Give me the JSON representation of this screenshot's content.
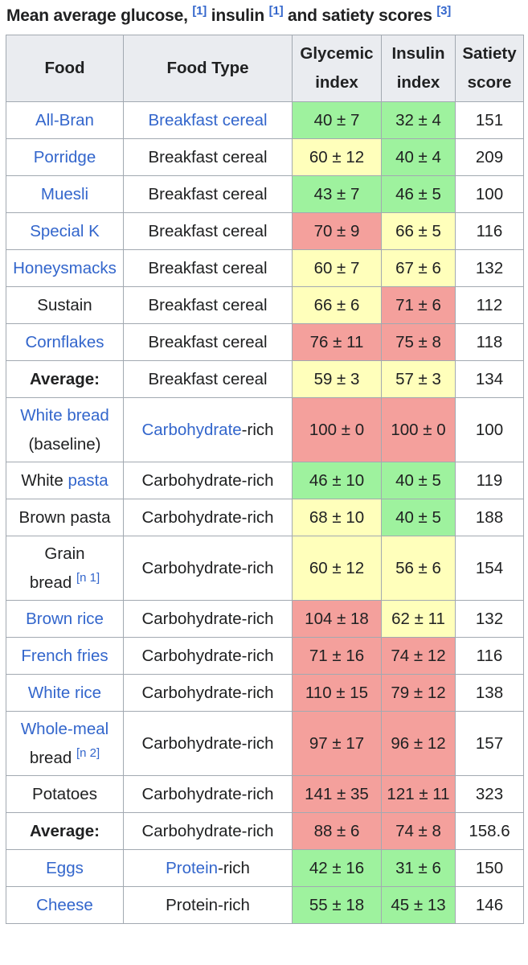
{
  "caption": {
    "text1": "Mean average glucose,",
    "ref1": "[1]",
    "text2": "insulin",
    "ref2": "[1]",
    "text3": "and satiety scores",
    "ref3": "[3]"
  },
  "headers": {
    "food": "Food",
    "food_type": "Food Type",
    "glycemic_1": "Glycemic",
    "glycemic_2": "index",
    "insulin_1": "Insulin",
    "insulin_2": "index",
    "satiety_1": "Satiety",
    "satiety_2": "score"
  },
  "colors": {
    "low": "#9ef29e",
    "medium": "#ffffbb",
    "high": "#f4a09c",
    "link": "#3366cc",
    "header_bg": "#eaecf0"
  },
  "rows": [
    {
      "food": "All-Bran",
      "food_link": true,
      "type": "Breakfast cereal",
      "type_link": true,
      "gi": "40 ± 7",
      "gi_level": "low",
      "ii": "32 ± 4",
      "ii_level": "low",
      "satiety": "151"
    },
    {
      "food": "Porridge",
      "food_link": true,
      "type": "Breakfast cereal",
      "gi": "60 ± 12",
      "gi_level": "medium",
      "ii": "40 ± 4",
      "ii_level": "low",
      "satiety": "209"
    },
    {
      "food": "Muesli",
      "food_link": true,
      "type": "Breakfast cereal",
      "gi": "43 ± 7",
      "gi_level": "low",
      "ii": "46 ± 5",
      "ii_level": "low",
      "satiety": "100"
    },
    {
      "food": "Special K",
      "food_link": true,
      "type": "Breakfast cereal",
      "gi": "70 ± 9",
      "gi_level": "high",
      "ii": "66 ± 5",
      "ii_level": "medium",
      "satiety": "116"
    },
    {
      "food": "Honeysmacks",
      "food_link": true,
      "type": "Breakfast cereal",
      "gi": "60 ± 7",
      "gi_level": "medium",
      "ii": "67 ± 6",
      "ii_level": "medium",
      "satiety": "132"
    },
    {
      "food": "Sustain",
      "type": "Breakfast cereal",
      "gi": "66 ± 6",
      "gi_level": "medium",
      "ii": "71 ± 6",
      "ii_level": "high",
      "satiety": "112"
    },
    {
      "food": "Cornflakes",
      "food_link": true,
      "type": "Breakfast cereal",
      "gi": "76 ± 11",
      "gi_level": "high",
      "ii": "75 ± 8",
      "ii_level": "high",
      "satiety": "118"
    },
    {
      "food": "Average:",
      "food_bold": true,
      "type": "Breakfast cereal",
      "gi": "59 ± 3",
      "gi_level": "medium",
      "ii": "57 ± 3",
      "ii_level": "medium",
      "satiety": "134"
    },
    {
      "food": "White bread",
      "food_link": true,
      "food_line2": "(baseline)",
      "type_link_part": "Carbohydrate",
      "type_rest": "-rich",
      "gi": "100 ± 0",
      "gi_level": "high",
      "ii": "100 ± 0",
      "ii_level": "high",
      "satiety": "100"
    },
    {
      "food_plain_part": "White ",
      "food_link_part": "pasta",
      "type": "Carbohydrate-rich",
      "gi": "46 ± 10",
      "gi_level": "low",
      "ii": "40 ± 5",
      "ii_level": "low",
      "satiety": "119"
    },
    {
      "food": "Brown pasta",
      "type": "Carbohydrate-rich",
      "gi": "68 ± 10",
      "gi_level": "medium",
      "ii": "40 ± 5",
      "ii_level": "low",
      "satiety": "188"
    },
    {
      "food": "Grain",
      "food_line2": "bread",
      "food_note": "[n 1]",
      "type": "Carbohydrate-rich",
      "gi": "60 ± 12",
      "gi_level": "medium",
      "ii": "56 ± 6",
      "ii_level": "medium",
      "satiety": "154"
    },
    {
      "food": "Brown rice",
      "food_link": true,
      "type": "Carbohydrate-rich",
      "gi": "104 ± 18",
      "gi_level": "high",
      "ii": "62 ± 11",
      "ii_level": "medium",
      "satiety": "132"
    },
    {
      "food": "French fries",
      "food_link": true,
      "type": "Carbohydrate-rich",
      "gi": "71 ± 16",
      "gi_level": "high",
      "ii": "74 ± 12",
      "ii_level": "high",
      "satiety": "116"
    },
    {
      "food": "White rice",
      "food_link": true,
      "type": "Carbohydrate-rich",
      "gi": "110 ± 15",
      "gi_level": "high",
      "ii": "79 ± 12",
      "ii_level": "high",
      "satiety": "138"
    },
    {
      "food": "Whole-meal",
      "food_link": true,
      "food_line2": "bread",
      "food_note": "[n 2]",
      "type": "Carbohydrate-rich",
      "gi": "97 ± 17",
      "gi_level": "high",
      "ii": "96 ± 12",
      "ii_level": "high",
      "satiety": "157"
    },
    {
      "food": "Potatoes",
      "type": "Carbohydrate-rich",
      "gi": "141 ± 35",
      "gi_level": "high",
      "ii": "121 ± 11",
      "ii_level": "high",
      "satiety": "323"
    },
    {
      "food": "Average:",
      "food_bold": true,
      "type": "Carbohydrate-rich",
      "gi": "88 ± 6",
      "gi_level": "high",
      "ii": "74 ± 8",
      "ii_level": "high",
      "satiety": "158.6"
    },
    {
      "food": "Eggs",
      "food_link": true,
      "type_link_part": "Protein",
      "type_rest": "-rich",
      "gi": "42 ± 16",
      "gi_level": "low",
      "ii": "31 ± 6",
      "ii_level": "low",
      "satiety": "150"
    },
    {
      "food": "Cheese",
      "food_link": true,
      "type": "Protein-rich",
      "gi": "55 ± 18",
      "gi_level": "low",
      "ii": "45 ± 13",
      "ii_level": "low",
      "satiety": "146"
    }
  ]
}
